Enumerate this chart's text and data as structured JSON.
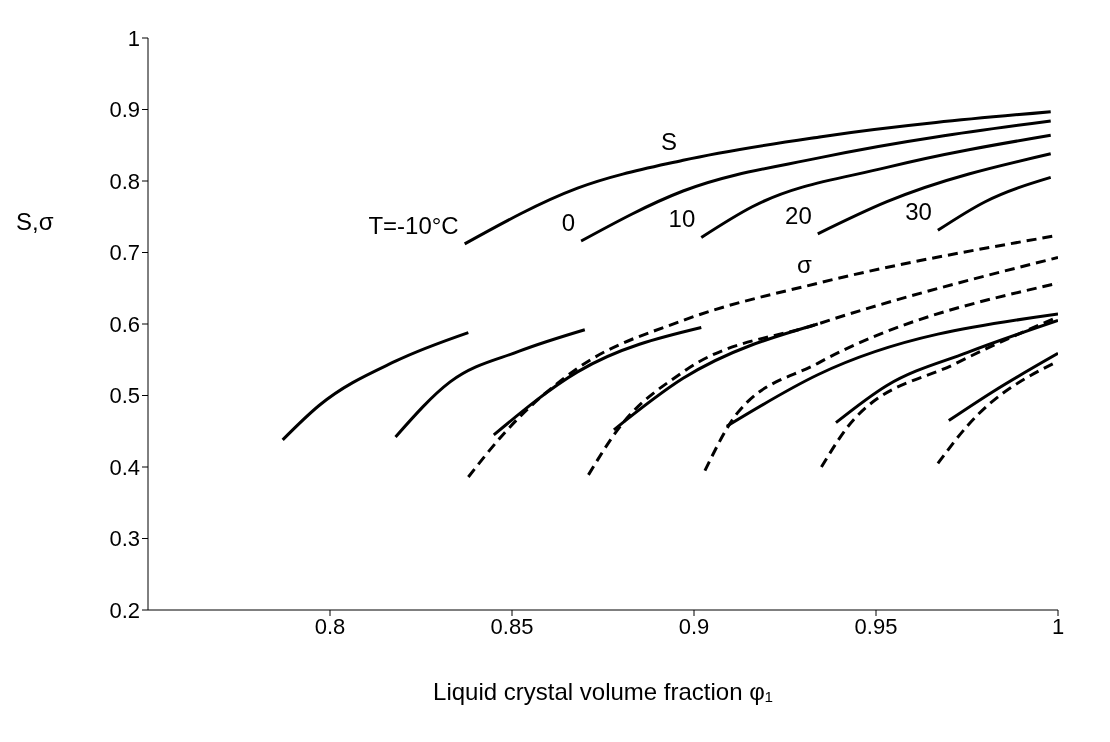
{
  "chart_data": {
    "type": "line",
    "xlabel": "Liquid crystal volume fraction φ₁",
    "ylabel": "S,σ",
    "xlim": [
      0.75,
      1
    ],
    "xticks": [
      0.8,
      0.85,
      0.9,
      0.95,
      1
    ],
    "ylim": [
      0.2,
      1
    ],
    "yticks": [
      0.2,
      0.3,
      0.4,
      0.5,
      0.6,
      0.7,
      0.8,
      0.9,
      1
    ],
    "grid": false,
    "marker": "none",
    "series": [
      {
        "color": "#000000",
        "line_style": "solid",
        "x": [
          0.837,
          0.868,
          0.897,
          0.935,
          0.998
        ],
        "values": [
          0.712,
          0.79,
          0.829,
          0.862,
          0.897
        ]
      },
      {
        "color": "#000000",
        "line_style": "solid",
        "x": [
          0.869,
          0.897,
          0.935,
          0.998
        ],
        "values": [
          0.716,
          0.786,
          0.833,
          0.884
        ]
      },
      {
        "color": "#000000",
        "line_style": "solid",
        "x": [
          0.902,
          0.916,
          0.953,
          0.998
        ],
        "values": [
          0.721,
          0.764,
          0.819,
          0.864
        ]
      },
      {
        "color": "#000000",
        "line_style": "solid",
        "x": [
          0.934,
          0.953,
          0.998
        ],
        "values": [
          0.726,
          0.771,
          0.838
        ]
      },
      {
        "color": "#000000",
        "line_style": "solid",
        "x": [
          0.967,
          0.98,
          0.998
        ],
        "values": [
          0.731,
          0.771,
          0.805
        ]
      },
      {
        "color": "#000000",
        "line_style": "solid",
        "x": [
          0.787,
          0.797,
          0.818,
          0.838
        ],
        "values": [
          0.438,
          0.486,
          0.548,
          0.588
        ]
      },
      {
        "color": "#000000",
        "line_style": "solid",
        "x": [
          0.818,
          0.833,
          0.852,
          0.87
        ],
        "values": [
          0.442,
          0.519,
          0.562,
          0.592
        ]
      },
      {
        "color": "#000000",
        "line_style": "solid",
        "x": [
          0.845,
          0.868,
          0.902
        ],
        "values": [
          0.445,
          0.533,
          0.595
        ]
      },
      {
        "color": "#000000",
        "line_style": "solid",
        "x": [
          0.878,
          0.897,
          0.934
        ],
        "values": [
          0.452,
          0.524,
          0.6
        ]
      },
      {
        "color": "#000000",
        "line_style": "solid",
        "x": [
          0.909,
          0.934,
          1.0
        ],
        "values": [
          0.457,
          0.529,
          0.614
        ]
      },
      {
        "color": "#000000",
        "line_style": "solid",
        "x": [
          0.939,
          0.953,
          0.975,
          1.0
        ],
        "values": [
          0.462,
          0.514,
          0.56,
          0.605
        ]
      },
      {
        "color": "#000000",
        "line_style": "solid",
        "x": [
          0.97,
          0.982,
          1.0
        ],
        "values": [
          0.465,
          0.505,
          0.559
        ]
      },
      {
        "color": "#000000",
        "line_style": "dashed",
        "x": [
          0.838,
          0.848,
          0.868,
          0.897,
          0.934,
          1.0
        ],
        "values": [
          0.386,
          0.448,
          0.538,
          0.605,
          0.657,
          0.724
        ]
      },
      {
        "color": "#000000",
        "line_style": "dashed",
        "x": [
          0.871,
          0.879,
          0.897,
          0.934,
          1.0
        ],
        "values": [
          0.389,
          0.452,
          0.533,
          0.6,
          0.693
        ]
      },
      {
        "color": "#000000",
        "line_style": "dashed",
        "x": [
          0.903,
          0.912,
          0.934,
          1.0
        ],
        "values": [
          0.395,
          0.476,
          0.545,
          0.657
        ]
      },
      {
        "color": "#000000",
        "line_style": "dashed",
        "x": [
          0.935,
          0.944,
          0.972,
          1.0
        ],
        "values": [
          0.4,
          0.467,
          0.545,
          0.61
        ]
      },
      {
        "color": "#000000",
        "line_style": "dashed",
        "x": [
          0.967,
          0.975,
          1.0
        ],
        "values": [
          0.405,
          0.457,
          0.548
        ]
      }
    ],
    "annotations": [
      {
        "text": "S",
        "x": 0.897,
        "y": 0.829
      },
      {
        "text": "σ",
        "x": 0.934,
        "y": 0.657
      },
      {
        "text": "T=-10°C",
        "x": 0.837,
        "y": 0.712
      },
      {
        "text": "0",
        "x": 0.869,
        "y": 0.716
      },
      {
        "text": "10",
        "x": 0.902,
        "y": 0.721
      },
      {
        "text": "20",
        "x": 0.934,
        "y": 0.726
      },
      {
        "text": "30",
        "x": 0.967,
        "y": 0.731
      }
    ]
  }
}
